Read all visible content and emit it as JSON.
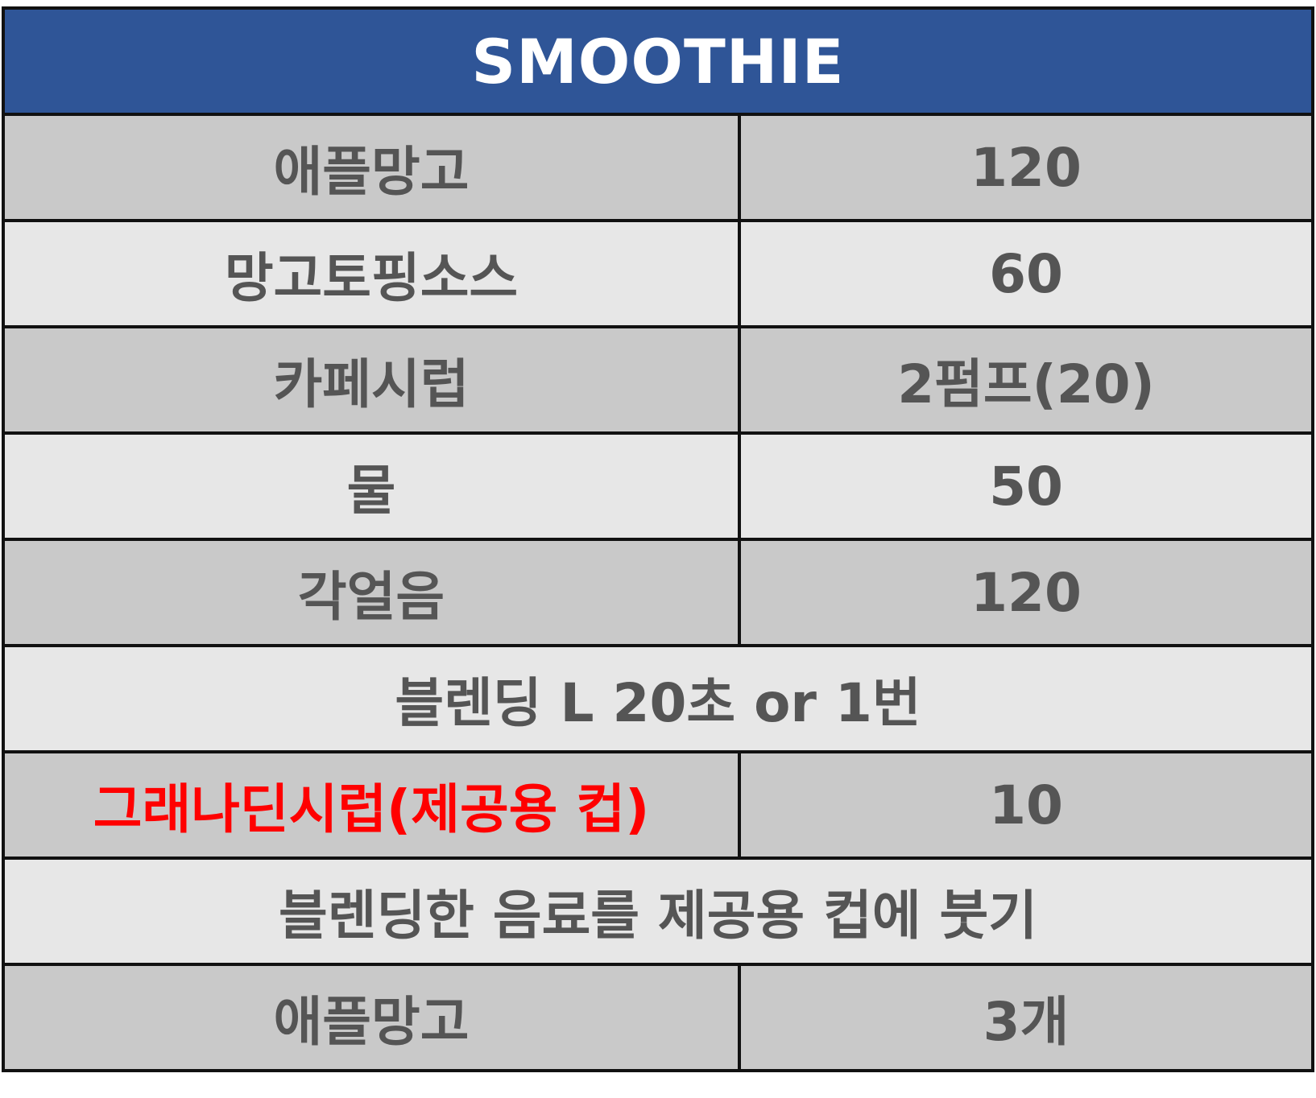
{
  "title": "SMOOTHIE",
  "rows": [
    {
      "item": "애플망고",
      "amount": "120"
    },
    {
      "item": "망고토핑소스",
      "amount": "60"
    },
    {
      "item": "카페시럽",
      "amount": "2펌프(20)"
    },
    {
      "item": "물",
      "amount": "50"
    },
    {
      "item": "각얼음",
      "amount": "120"
    },
    {
      "instruction": "블렌딩 L 20초 or 1번"
    },
    {
      "item": "그래나딘시럽(제공용 컵)",
      "amount": "10"
    },
    {
      "instruction": "블렌딩한 음료를 제공용 컵에 붓기"
    },
    {
      "item": "애플망고",
      "amount": "3개"
    }
  ],
  "colors": {
    "header_bg": "#2f5597",
    "header_text": "#ffffff",
    "row_dark": "#c9c9c9",
    "row_light": "#e7e7e7",
    "text": "#555555",
    "highlight_text": "#ff0000",
    "border": "#111111"
  }
}
